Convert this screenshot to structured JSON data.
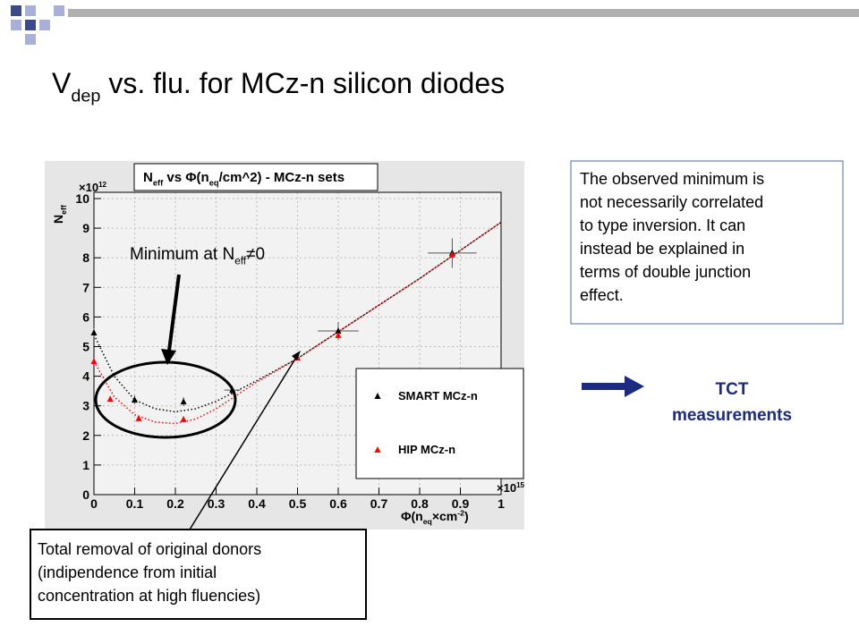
{
  "slide_title": [
    {
      "t": "V"
    },
    {
      "t": "dep",
      "sub": true
    },
    {
      "t": " vs. flu. for MCz-n silicon diodes"
    }
  ],
  "chart_data": {
    "type": "scatter",
    "title": [
      {
        "t": "N"
      },
      {
        "t": "eff",
        "sub": true
      },
      {
        "t": " vs "
      },
      {
        "t": "Φ(n"
      },
      {
        "t": "eq",
        "sub": true
      },
      {
        "t": "/cm^2) - MCz-n sets"
      }
    ],
    "xlabel": [
      {
        "t": "Φ(n"
      },
      {
        "t": "eq",
        "sub": true
      },
      {
        "t": "×cm"
      },
      {
        "t": "-2",
        "sup": true
      },
      {
        "t": ")"
      }
    ],
    "ylabel": [
      {
        "t": "N"
      },
      {
        "t": "eff",
        "sub": true
      }
    ],
    "xmultiplier": [
      {
        "t": "×10"
      },
      {
        "t": "15",
        "sup": true
      }
    ],
    "ymultiplier": [
      {
        "t": "×10"
      },
      {
        "t": "12",
        "sup": true
      }
    ],
    "xlim": [
      0,
      1
    ],
    "ylim": [
      0,
      10.2
    ],
    "xticks": [
      0,
      0.1,
      0.2,
      0.3,
      0.4,
      0.5,
      0.6,
      0.7,
      0.8,
      0.9,
      1
    ],
    "yticks": [
      0,
      1,
      2,
      3,
      4,
      5,
      6,
      7,
      8,
      9,
      10
    ],
    "grid": true,
    "series": [
      {
        "name": "SMART MCz-n",
        "color": "#000000",
        "x": [
          0,
          0.1,
          0.22,
          0.34,
          0.6,
          0.88
        ],
        "values": [
          5.47,
          3.2,
          3.14,
          3.53,
          5.53,
          8.16
        ],
        "xerr": [
          0,
          0,
          0,
          0.02,
          0.05,
          0.06
        ],
        "yerr": [
          0.15,
          0.15,
          0.15,
          0.15,
          0.3,
          0.5
        ]
      },
      {
        "name": "HIP MCz-n",
        "color": "#ff0000",
        "x": [
          0,
          0.04,
          0.11,
          0.22,
          0.5,
          0.6,
          0.88
        ],
        "values": [
          4.5,
          3.23,
          2.57,
          2.54,
          4.62,
          5.38,
          8.1
        ]
      }
    ],
    "fits": [
      {
        "color": "#000000",
        "x": [
          0,
          0.05,
          0.1,
          0.15,
          0.2,
          0.25,
          0.3,
          0.35,
          0.4,
          0.5,
          0.6,
          0.7,
          0.8,
          0.9,
          1
        ],
        "values": [
          5.4,
          4.0,
          3.2,
          2.9,
          2.8,
          2.9,
          3.15,
          3.5,
          3.85,
          4.6,
          5.5,
          6.4,
          7.3,
          8.25,
          9.2
        ]
      },
      {
        "color": "#ff0000",
        "x": [
          0,
          0.05,
          0.1,
          0.15,
          0.2,
          0.25,
          0.3,
          0.35,
          0.4,
          0.5,
          0.6,
          0.7,
          0.8,
          0.9,
          1
        ],
        "values": [
          4.5,
          3.3,
          2.7,
          2.45,
          2.4,
          2.55,
          2.9,
          3.35,
          3.8,
          4.6,
          5.5,
          6.4,
          7.3,
          8.25,
          9.2
        ]
      }
    ]
  },
  "annotation_min": [
    {
      "t": "Minimum at N"
    },
    {
      "t": "eff",
      "sub": true
    },
    {
      "t": "≠0"
    }
  ],
  "right_box": [
    "The observed minimum is",
    "not necessarily correlated",
    "to type inversion. It can",
    "instead be explained in",
    "terms of double junction",
    "effect."
  ],
  "tct": [
    "TCT",
    "measurements"
  ],
  "bottom_box": [
    "Total removal of original donors",
    "(indipendence from initial",
    "concentration at high fluencies)"
  ]
}
